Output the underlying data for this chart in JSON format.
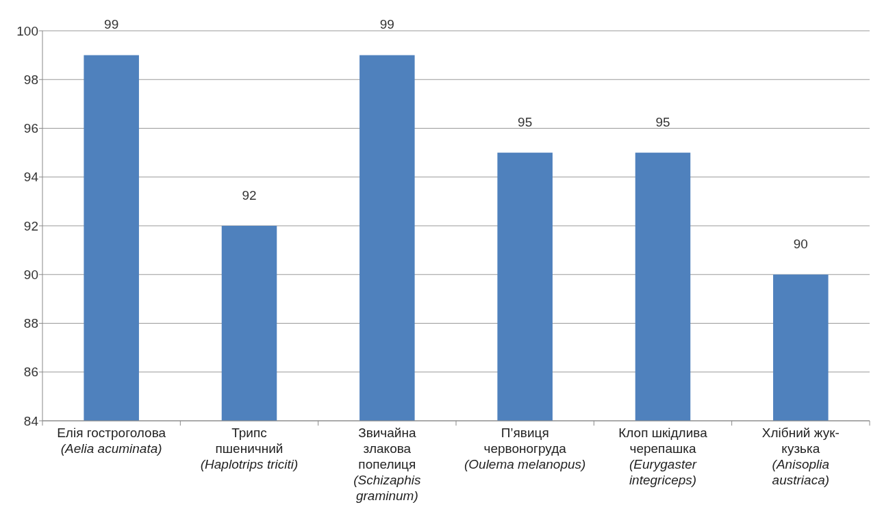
{
  "chart_data": {
    "type": "bar",
    "categories": [
      "Елія гостроголова\n(Aelia acuminata)",
      "Трипс\nпшеничний\n(Haplotrips triciti)",
      "Звичайна\nзлакова\nпопелиця\n(Schizaphis\ngraminum)",
      "П’явиця\nчервоногруда\n(Oulema melanopus)",
      "Клоп шкідлива\nчерепашка\n(Eurygaster\nintegriceps)",
      "Хлібний жук-\nкузька\n(Anisoplia\naustriaca)"
    ],
    "values": [
      99,
      92,
      99,
      95,
      95,
      90
    ],
    "color": "#4f81bd",
    "ylim": [
      84,
      100
    ],
    "yticks": [
      84,
      86,
      88,
      90,
      92,
      94,
      96,
      98,
      100
    ],
    "grid": "y",
    "data_labels": true
  }
}
